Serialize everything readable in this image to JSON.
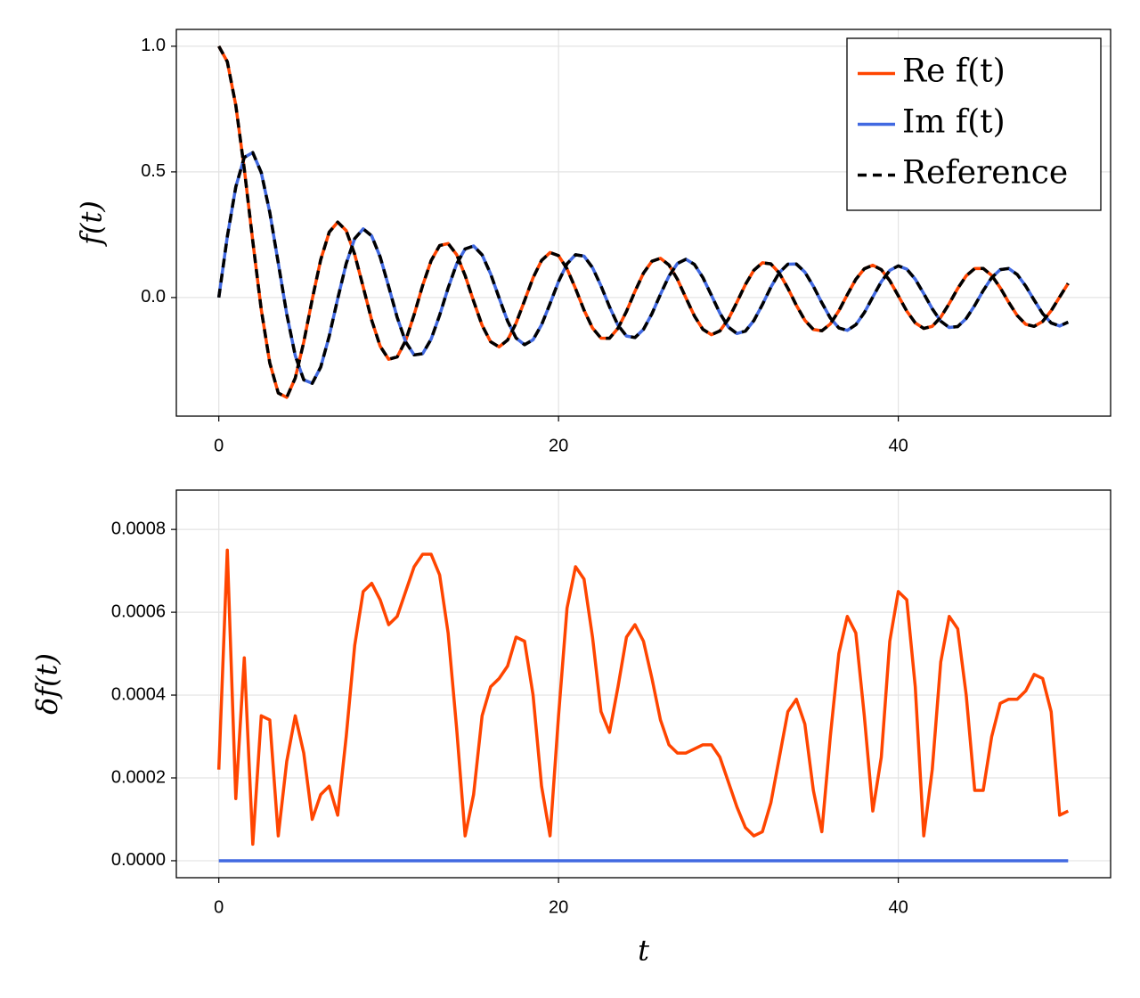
{
  "chart_data": [
    {
      "type": "line",
      "ylabel": "f(t)",
      "grid": true,
      "legend": "upper right",
      "xlim": [
        -2.5,
        52.5
      ],
      "xticks": [
        0,
        20,
        40
      ],
      "ylim": [
        -0.472,
        1.067
      ],
      "yticks": [
        {
          "value": 0,
          "label": "0.0"
        },
        0.5,
        {
          "value": 1,
          "label": "1.0"
        }
      ],
      "x": [
        0,
        0.5,
        1,
        1.5,
        2,
        2.5,
        3,
        3.5,
        4,
        4.5,
        5,
        5.5,
        6,
        6.5,
        7,
        7.5,
        8,
        8.5,
        9,
        9.5,
        10,
        10.5,
        11,
        11.5,
        12,
        12.5,
        13,
        13.5,
        14,
        14.5,
        15,
        15.5,
        16,
        16.5,
        17,
        17.5,
        18,
        18.5,
        19,
        19.5,
        20,
        20.5,
        21,
        21.5,
        22,
        22.5,
        23,
        23.5,
        24,
        24.5,
        25,
        25.5,
        26,
        26.5,
        27,
        27.5,
        28,
        28.5,
        29,
        29.5,
        30,
        30.5,
        31,
        31.5,
        32,
        32.5,
        33,
        33.5,
        34,
        34.5,
        35,
        35.5,
        36,
        36.5,
        37,
        37.5,
        38,
        38.5,
        39,
        39.5,
        40,
        40.5,
        41,
        41.5,
        42,
        42.5,
        43,
        43.5,
        44,
        44.5,
        45,
        45.5,
        46,
        46.5,
        47,
        47.5,
        48,
        48.5,
        49,
        49.5,
        50
      ],
      "series": [
        {
          "name": "Re f(t)",
          "color": "#ff4500",
          "values": [
            1,
            0.9385,
            0.7652,
            0.5118,
            0.2239,
            -0.0484,
            -0.2601,
            -0.3801,
            -0.3971,
            -0.3205,
            -0.1776,
            -0.0068,
            0.1506,
            0.2601,
            0.3001,
            0.2663,
            0.1717,
            0.0419,
            -0.0903,
            -0.1939,
            -0.2459,
            -0.2366,
            -0.1712,
            -0.0677,
            0.0477,
            0.1469,
            0.2069,
            0.215,
            0.1711,
            0.0875,
            -0.0142,
            -0.1107,
            -0.1759,
            -0.1964,
            -0.1694,
            -0.1019,
            -0.0122,
            0.0784,
            0.1474,
            0.179,
            0.1667,
            0.1143,
            0.0356,
            -0.0499,
            -0.1214,
            -0.1618,
            -0.1623,
            -0.1222,
            -0.0551,
            0.0245,
            0.097,
            0.1444,
            0.156,
            0.1295,
            0.0722,
            -0.0017,
            -0.0737,
            -0.1268,
            -0.1479,
            -0.133,
            -0.0857,
            -0.0188,
            0.0517,
            0.1086,
            0.1382,
            0.1338,
            0.0969,
            0.037,
            -0.0309,
            -0.0904,
            -0.1271,
            -0.1323,
            -0.1052,
            -0.0529,
            0.0113,
            0.0723,
            0.1145,
            0.1286,
            0.1112,
            0.067,
            0.007,
            -0.0541,
            -0.101,
            -0.1229,
            -0.1147,
            -0.0784,
            -0.0238,
            0.0361,
            0.0865,
            0.1153,
            0.1157,
            0.088,
            0.0391,
            -0.0188,
            -0.0716,
            -0.1064,
            -0.1148,
            -0.0952,
            -0.0525,
            0.0022,
            0.056
          ]
        },
        {
          "name": "Im f(t)",
          "color": "#4169e1",
          "values": [
            0,
            0.2423,
            0.4401,
            0.5579,
            0.5767,
            0.4971,
            0.3391,
            0.1374,
            -0.066,
            -0.2311,
            -0.3276,
            -0.3414,
            -0.2767,
            -0.1538,
            -0.0047,
            0.1352,
            0.2346,
            0.2731,
            0.2453,
            0.1613,
            0.0435,
            -0.0789,
            -0.1768,
            -0.2284,
            -0.2234,
            -0.1655,
            -0.0703,
            0.038,
            0.1334,
            0.1934,
            0.2051,
            0.1698,
            0.0942,
            -0.0013,
            -0.0936,
            -0.1612,
            -0.1877,
            -0.1681,
            -0.1086,
            -0.0243,
            0.0637,
            0.1341,
            0.1704,
            0.1647,
            0.1191,
            0.046,
            -0.0368,
            -0.1102,
            -0.1533,
            -0.1593,
            -0.1267,
            -0.0642,
            0.0128,
            0.0852,
            0.1356,
            0.1522,
            0.1316,
            0.0792,
            0.0088,
            -0.0623,
            -0.1178,
            -0.1433,
            -0.1337,
            -0.0917,
            -0.0282,
            0.0412,
            0.0995,
            0.1328,
            0.1333,
            0.1014,
            0.0451,
            -0.0209,
            -0.0814,
            -0.1211,
            -0.1307,
            -0.1084,
            -0.0603,
            0.002,
            0.063,
            0.1079,
            0.126,
            0.1131,
            0.073,
            0.0156,
            -0.0447,
            -0.094,
            -0.1193,
            -0.1155,
            -0.0836,
            -0.0316,
            0.0274,
            0.0791,
            0.1109,
            0.1155,
            0.0918,
            0.0457,
            -0.0104,
            -0.0639,
            -0.1012,
            -0.1134,
            -0.0979
          ]
        },
        {
          "name": "Reference",
          "color": "#000000",
          "dash": true,
          "values": [
            1,
            0.9385,
            0.7652,
            0.5118,
            0.2239,
            -0.0484,
            -0.2601,
            -0.3801,
            -0.3971,
            -0.3205,
            -0.1776,
            -0.0068,
            0.1506,
            0.2601,
            0.3001,
            0.2663,
            0.1717,
            0.0419,
            -0.0903,
            -0.1939,
            -0.2459,
            -0.2366,
            -0.1712,
            -0.0677,
            0.0477,
            0.1469,
            0.2069,
            0.215,
            0.1711,
            0.0875,
            -0.0142,
            -0.1107,
            -0.1759,
            -0.1964,
            -0.1694,
            -0.1019,
            -0.0122,
            0.0784,
            0.1474,
            0.179,
            0.1667,
            0.1143,
            0.0356,
            -0.0499,
            -0.1214,
            -0.1618,
            -0.1623,
            -0.1222,
            -0.0551,
            0.0245,
            0.097,
            0.1444,
            0.156,
            0.1295,
            0.0722,
            -0.0017,
            -0.0737,
            -0.1268,
            -0.1479,
            -0.133,
            -0.0857,
            -0.0188,
            0.0517,
            0.1086,
            0.1382,
            0.1338,
            0.0969,
            0.037,
            -0.0309,
            -0.0904,
            -0.1271,
            -0.1323,
            -0.1052,
            -0.0529,
            0.0113,
            0.0723,
            0.1145,
            0.1286,
            0.1112,
            0.067,
            0.007,
            -0.0541,
            -0.101,
            -0.1229,
            -0.1147,
            -0.0784,
            -0.0238,
            0.0361,
            0.0865,
            0.1153,
            0.1157,
            0.088,
            0.0391,
            -0.0188,
            -0.0716,
            -0.1064,
            -0.1148,
            -0.0952,
            -0.0525,
            0.0022,
            0.056
          ]
        },
        {
          "color": "#000000",
          "dash": true,
          "values": [
            0,
            0.2423,
            0.4401,
            0.5579,
            0.5767,
            0.4971,
            0.3391,
            0.1374,
            -0.066,
            -0.2311,
            -0.3276,
            -0.3414,
            -0.2767,
            -0.1538,
            -0.0047,
            0.1352,
            0.2346,
            0.2731,
            0.2453,
            0.1613,
            0.0435,
            -0.0789,
            -0.1768,
            -0.2284,
            -0.2234,
            -0.1655,
            -0.0703,
            0.038,
            0.1334,
            0.1934,
            0.2051,
            0.1698,
            0.0942,
            -0.0013,
            -0.0936,
            -0.1612,
            -0.1877,
            -0.1681,
            -0.1086,
            -0.0243,
            0.0637,
            0.1341,
            0.1704,
            0.1647,
            0.1191,
            0.046,
            -0.0368,
            -0.1102,
            -0.1533,
            -0.1593,
            -0.1267,
            -0.0642,
            0.0128,
            0.0852,
            0.1356,
            0.1522,
            0.1316,
            0.0792,
            0.0088,
            -0.0623,
            -0.1178,
            -0.1433,
            -0.1337,
            -0.0917,
            -0.0282,
            0.0412,
            0.0995,
            0.1328,
            0.1333,
            0.1014,
            0.0451,
            -0.0209,
            -0.0814,
            -0.1211,
            -0.1307,
            -0.1084,
            -0.0603,
            0.002,
            0.063,
            0.1079,
            0.126,
            0.1131,
            0.073,
            0.0156,
            -0.0447,
            -0.094,
            -0.1193,
            -0.1155,
            -0.0836,
            -0.0316,
            0.0274,
            0.0791,
            0.1109,
            0.1155,
            0.0918,
            0.0457,
            -0.0104,
            -0.0639,
            -0.1012,
            -0.1134,
            -0.0979
          ]
        }
      ]
    },
    {
      "type": "line",
      "ylabel": "δf(t)",
      "xlabel": "t",
      "grid": true,
      "xlim": [
        -2.5,
        52.5
      ],
      "xticks": [
        0,
        20,
        40
      ],
      "ylim": [
        -4.1e-05,
        0.000895
      ],
      "yticks": [
        {
          "value": 0,
          "label": "0.0000"
        },
        {
          "value": 0.0002,
          "label": "0.0002"
        },
        {
          "value": 0.0004,
          "label": "0.0004"
        },
        {
          "value": 0.0006,
          "label": "0.0006"
        },
        {
          "value": 0.0008,
          "label": "0.0008"
        }
      ],
      "x": [
        0,
        0.5,
        1,
        1.5,
        2,
        2.5,
        3,
        3.5,
        4,
        4.5,
        5,
        5.5,
        6,
        6.5,
        7,
        7.5,
        8,
        8.5,
        9,
        9.5,
        10,
        10.5,
        11,
        11.5,
        12,
        12.5,
        13,
        13.5,
        14,
        14.5,
        15,
        15.5,
        16,
        16.5,
        17,
        17.5,
        18,
        18.5,
        19,
        19.5,
        20,
        20.5,
        21,
        21.5,
        22,
        22.5,
        23,
        23.5,
        24,
        24.5,
        25,
        25.5,
        26,
        26.5,
        27,
        27.5,
        28,
        28.5,
        29,
        29.5,
        30,
        30.5,
        31,
        31.5,
        32,
        32.5,
        33,
        33.5,
        34,
        34.5,
        35,
        35.5,
        36,
        36.5,
        37,
        37.5,
        38,
        38.5,
        39,
        39.5,
        40,
        40.5,
        41,
        41.5,
        42,
        42.5,
        43,
        43.5,
        44,
        44.5,
        45,
        45.5,
        46,
        46.5,
        47,
        47.5,
        48,
        48.5,
        49,
        49.5,
        50
      ],
      "series": [
        {
          "color": "#ff4500",
          "values": [
            0.00022,
            0.00075,
            0.00015,
            0.00049,
            4e-05,
            0.00035,
            0.00034,
            6e-05,
            0.00024,
            0.00035,
            0.00026,
            0.0001,
            0.00016,
            0.00018,
            0.00011,
            0.0003,
            0.00052,
            0.00065,
            0.00067,
            0.00063,
            0.00057,
            0.00059,
            0.00065,
            0.00071,
            0.00074,
            0.00074,
            0.00069,
            0.00055,
            0.00032,
            6e-05,
            0.00016,
            0.00035,
            0.00042,
            0.00044,
            0.00047,
            0.00054,
            0.00053,
            0.0004,
            0.00018,
            6e-05,
            0.00035,
            0.00061,
            0.00071,
            0.00068,
            0.00054,
            0.00036,
            0.00031,
            0.00042,
            0.00054,
            0.00057,
            0.00053,
            0.00044,
            0.00034,
            0.00028,
            0.00026,
            0.00026,
            0.00027,
            0.00028,
            0.00028,
            0.00025,
            0.00019,
            0.00013,
            8e-05,
            6e-05,
            7e-05,
            0.00014,
            0.00025,
            0.00036,
            0.00039,
            0.00033,
            0.00017,
            7e-05,
            0.0003,
            0.0005,
            0.00059,
            0.00055,
            0.00035,
            0.00012,
            0.00025,
            0.00053,
            0.00065,
            0.00063,
            0.00042,
            6e-05,
            0.00022,
            0.00048,
            0.00059,
            0.00056,
            0.0004,
            0.00017,
            0.00017,
            0.0003,
            0.00038,
            0.00039,
            0.00039,
            0.00041,
            0.00045,
            0.00044,
            0.00036,
            0.00011,
            0.00012
          ]
        },
        {
          "color": "#4169e1",
          "values": [
            0,
            0,
            0,
            0,
            0,
            0,
            0,
            0,
            0,
            0,
            0,
            0,
            0,
            0,
            0,
            0,
            0,
            0,
            0,
            0,
            0,
            0,
            0,
            0,
            0,
            0,
            0,
            0,
            0,
            0,
            0,
            0,
            0,
            0,
            0,
            0,
            0,
            0,
            0,
            0,
            0,
            0,
            0,
            0,
            0,
            0,
            0,
            0,
            0,
            0,
            0,
            0,
            0,
            0,
            0,
            0,
            0,
            0,
            0,
            0,
            0,
            0,
            0,
            0,
            0,
            0,
            0,
            0,
            0,
            0,
            0,
            0,
            0,
            0,
            0,
            0,
            0,
            0,
            0,
            0,
            0,
            0,
            0,
            0,
            0,
            0,
            0,
            0,
            0,
            0,
            0,
            0,
            0,
            0,
            0,
            0,
            0,
            0,
            0,
            0,
            0
          ]
        }
      ]
    }
  ]
}
